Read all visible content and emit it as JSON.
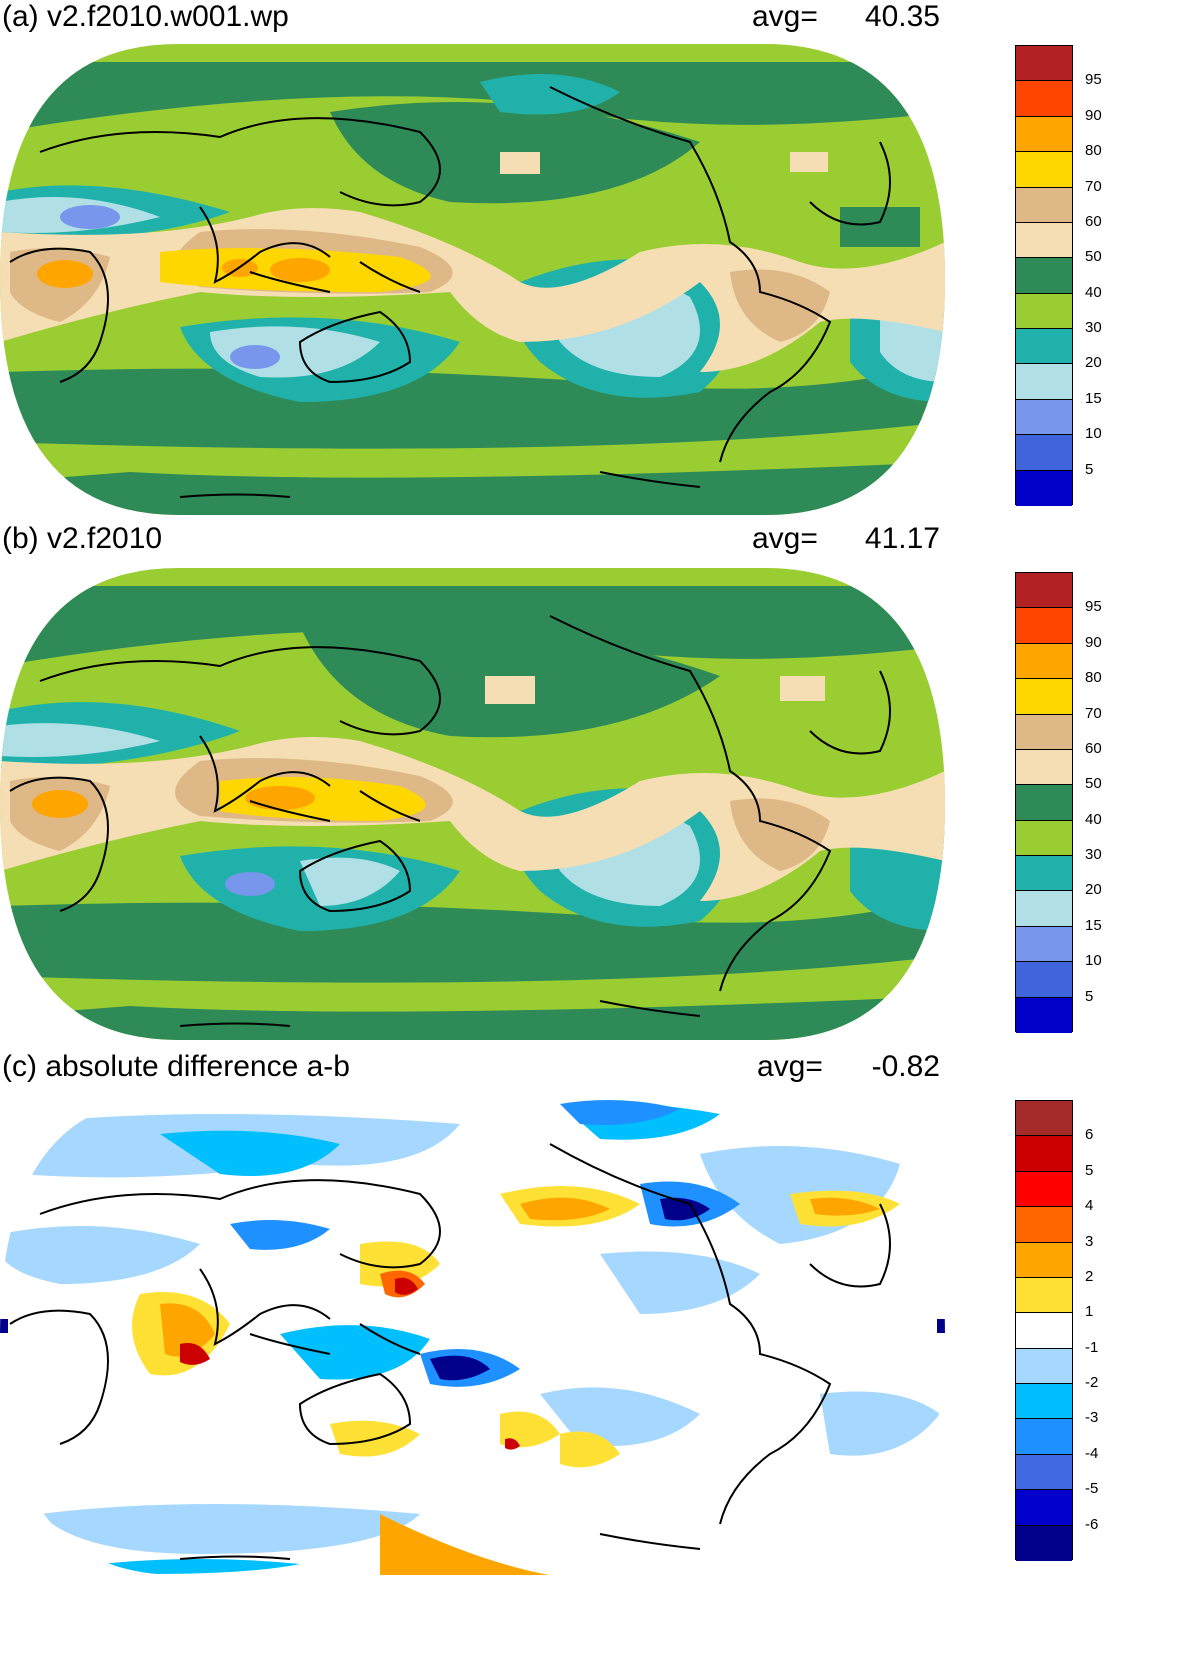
{
  "panels": [
    {
      "title": "(a) v2.f2010.w001.wp",
      "avg_label": "avg=",
      "avg_value": "40.35",
      "colorbar": {
        "labels": [
          "5",
          "10",
          "15",
          "20",
          "30",
          "40",
          "50",
          "60",
          "70",
          "80",
          "90",
          "95"
        ],
        "colors": [
          "#0000c8",
          "#3f64dc",
          "#7896eb",
          "#b0e0e6",
          "#20b2aa",
          "#9acd32",
          "#2e8b57",
          "#f5deb3",
          "#deb887",
          "#ffd700",
          "#ffa500",
          "#ff4500",
          "#b22222"
        ]
      },
      "map": {
        "background": "#9acd32",
        "coastline": "#000000"
      }
    },
    {
      "title": "(b) v2.f2010",
      "avg_label": "avg=",
      "avg_value": "41.17",
      "colorbar": {
        "labels": [
          "5",
          "10",
          "15",
          "20",
          "30",
          "40",
          "50",
          "60",
          "70",
          "80",
          "90",
          "95"
        ],
        "colors": [
          "#0000c8",
          "#3f64dc",
          "#7896eb",
          "#b0e0e6",
          "#20b2aa",
          "#9acd32",
          "#2e8b57",
          "#f5deb3",
          "#deb887",
          "#ffd700",
          "#ffa500",
          "#ff4500",
          "#b22222"
        ]
      },
      "map": {
        "background": "#9acd32",
        "coastline": "#000000"
      }
    },
    {
      "title": "(c) absolute difference a-b",
      "avg_label": "avg=",
      "avg_value": "-0.82",
      "colorbar": {
        "labels": [
          "-6",
          "-5",
          "-4",
          "-3",
          "-2",
          "-1",
          "1",
          "2",
          "3",
          "4",
          "5",
          "6"
        ],
        "colors": [
          "#00008b",
          "#0000cd",
          "#4169e1",
          "#1e90ff",
          "#00bfff",
          "#a6d8ff",
          "#ffffff",
          "#ffe135",
          "#ffa500",
          "#ff6600",
          "#ff0000",
          "#cc0000",
          "#a52a2a"
        ]
      },
      "map": {
        "background": "#ffffff",
        "coastline": "#000000"
      }
    }
  ]
}
